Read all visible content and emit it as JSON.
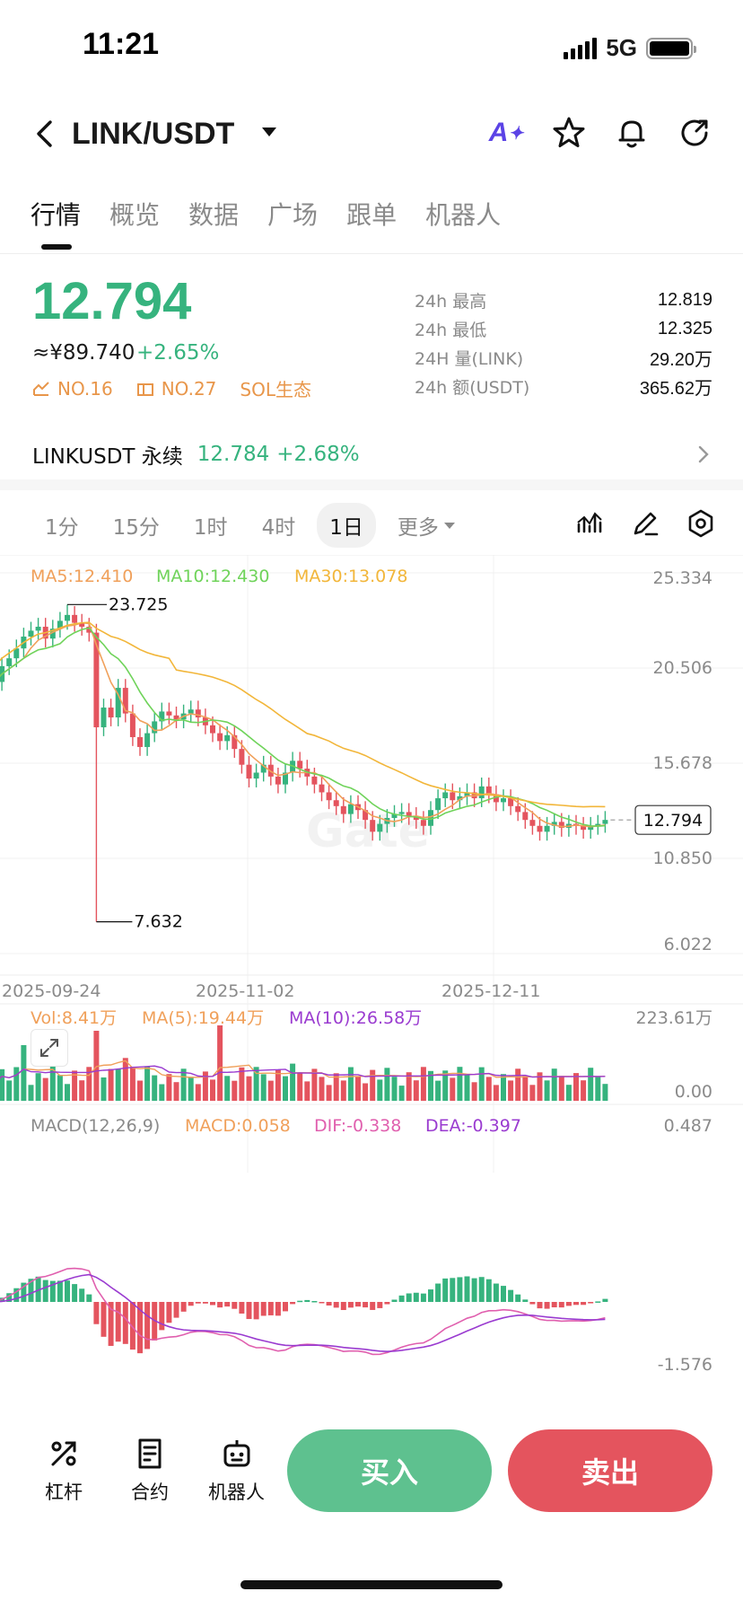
{
  "status": {
    "time": "11:21",
    "network": "5G"
  },
  "header": {
    "pair": "LINK/USDT"
  },
  "tabs": [
    "行情",
    "概览",
    "数据",
    "广场",
    "跟单",
    "机器人"
  ],
  "price": {
    "last": "12.794",
    "cny": "≈¥89.740",
    "change": "+2.65%",
    "ranks": [
      "NO.16",
      "NO.27",
      "SOL生态"
    ]
  },
  "stats": [
    {
      "label": "24h  最高",
      "value": "12.819"
    },
    {
      "label": "24h  最低",
      "value": "12.325"
    },
    {
      "label": "24H  量(LINK)",
      "value": "29.20万"
    },
    {
      "label": "24h  额(USDT)",
      "value": "365.62万"
    }
  ],
  "perp": {
    "name": "LINKUSDT 永续",
    "price": "12.784",
    "change": "+2.68%"
  },
  "intervals": [
    "1分",
    "15分",
    "1时",
    "4时",
    "1日"
  ],
  "interval_more": "更多",
  "colors": {
    "up": "#36b37e",
    "down": "#e4545e",
    "ma5": "#f0a05a",
    "ma10": "#6fd35a",
    "ma30": "#f2b63a",
    "dif": "#e05fae",
    "dea": "#9a3bd0"
  },
  "chart_data": {
    "type": "candlestick",
    "legend": {
      "ma5": "MA5:12.410",
      "ma10": "MA10:12.430",
      "ma30": "MA30:13.078"
    },
    "y_ticks": [
      "25.334",
      "20.506",
      "15.678",
      "10.850",
      "6.022"
    ],
    "ylim": [
      6.022,
      25.334
    ],
    "x_ticks": [
      "2025-09-24",
      "2025-11-02",
      "2025-12-11"
    ],
    "high_marker": "23.725",
    "low_marker": "7.632",
    "last_price_label": "12.794",
    "closes": [
      19.8,
      20.6,
      21.0,
      21.5,
      22.1,
      22.4,
      22.6,
      22.0,
      22.5,
      22.9,
      23.2,
      22.8,
      22.6,
      22.3,
      17.5,
      18.5,
      18.0,
      19.5,
      18.2,
      17.0,
      16.5,
      17.2,
      17.8,
      18.3,
      18.1,
      17.9,
      18.2,
      18.4,
      18.0,
      17.6,
      17.2,
      16.8,
      17.1,
      16.4,
      15.6,
      14.9,
      15.2,
      15.6,
      15.0,
      14.6,
      15.2,
      15.8,
      15.4,
      15.0,
      14.6,
      14.2,
      13.8,
      13.5,
      13.1,
      13.6,
      13.3,
      12.8,
      12.2,
      12.6,
      12.9,
      13.1,
      13.2,
      13.0,
      12.8,
      12.5,
      13.3,
      13.9,
      14.2,
      13.8,
      14.0,
      14.2,
      13.9,
      14.5,
      14.1,
      13.7,
      13.9,
      13.5,
      13.2,
      12.8,
      12.5,
      12.2,
      12.5,
      12.7,
      12.4,
      12.6,
      12.5,
      12.3,
      12.5,
      12.6,
      12.8
    ],
    "volume": {
      "legend_vol": "Vol:8.41万",
      "legend_ma5": "MA(5):19.44万",
      "legend_ma10": "MA(10):26.58万",
      "y_max_label": "223.61万",
      "y_min_label": "0.00"
    },
    "macd": {
      "legend_title": "MACD(12,26,9)",
      "legend_macd": "MACD:0.058",
      "legend_dif": "DIF:-0.338",
      "legend_dea": "DEA:-0.397",
      "y_max_label": "0.487",
      "y_min_label": "-1.576"
    }
  },
  "bottom": {
    "tools": [
      "杠杆",
      "合约",
      "机器人"
    ],
    "buy": "买入",
    "sell": "卖出"
  }
}
